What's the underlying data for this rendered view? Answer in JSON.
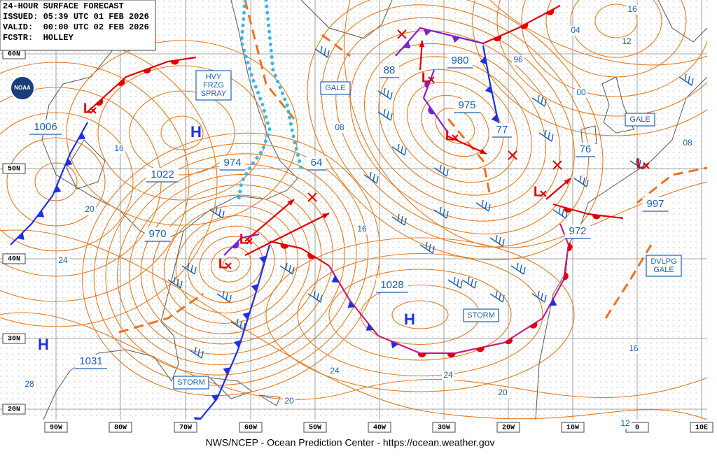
{
  "header": {
    "title": "24-HOUR SURFACE FORECAST",
    "issued": "ISSUED: 05:39 UTC 01 FEB 2026",
    "valid": "VALID:  00:00 UTC 02 FEB 2026",
    "forecaster": "FCSTR:  HOLLEY"
  },
  "logo": "NOAA",
  "latitude_labels": [
    "60N",
    "50N",
    "40N",
    "30N",
    "20N"
  ],
  "longitude_labels": [
    "90W",
    "80W",
    "70W",
    "60W",
    "50W",
    "40W",
    "30W",
    "20W",
    "10W",
    "0",
    "10E"
  ],
  "pressure_centers": [
    "1006",
    "1022",
    "974",
    "64",
    "970",
    "1031",
    "88",
    "980",
    "975",
    "77",
    "76",
    "997",
    "972",
    "1028"
  ],
  "high_labels": [
    "H",
    "H",
    "H"
  ],
  "low_labels": [
    "L",
    "L",
    "L",
    "L",
    "L",
    "L",
    "L"
  ],
  "warnings": [
    {
      "lines": [
        "HVY",
        "FRZG",
        "SPRAY"
      ]
    },
    {
      "lines": [
        "GALE"
      ]
    },
    {
      "lines": [
        "GALE"
      ]
    },
    {
      "lines": [
        "STORM"
      ]
    },
    {
      "lines": [
        "STORM"
      ]
    },
    {
      "lines": [
        "DVLPG",
        "GALE"
      ]
    }
  ],
  "isobar_labels": [
    "16",
    "20",
    "24",
    "28",
    "08",
    "16",
    "24",
    "24",
    "20",
    "20",
    "16",
    "12",
    "16",
    "04",
    "12",
    "96",
    "00",
    "08"
  ],
  "footer": "NWS/NCEP - Ocean Prediction Center - https://ocean.weather.gov"
}
